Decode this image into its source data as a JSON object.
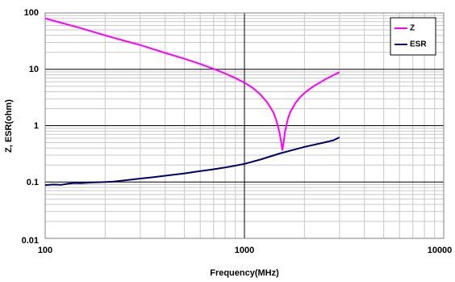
{
  "chart_data": {
    "type": "line",
    "title": "",
    "xlabel": "Frequency(MHz)",
    "ylabel": "Z, ESR(ohm)",
    "xscale": "log",
    "yscale": "log",
    "xlim": [
      100,
      10000
    ],
    "ylim": [
      0.01,
      100
    ],
    "x_ticks": [
      "100",
      "1000",
      "10000"
    ],
    "y_ticks": [
      "0.01",
      "0.1",
      "1",
      "10",
      "100"
    ],
    "grid": true,
    "legend_position": "top-right",
    "series": [
      {
        "name": "Z",
        "color": "#ff00ff",
        "x": [
          100,
          120,
          150,
          200,
          250,
          300,
          400,
          500,
          600,
          700,
          800,
          900,
          1000,
          1100,
          1200,
          1300,
          1400,
          1450,
          1500,
          1530,
          1550,
          1570,
          1600,
          1650,
          1700,
          1800,
          1900,
          2000,
          2200,
          2500,
          2800,
          3000
        ],
        "values": [
          80,
          67,
          54,
          40,
          32,
          27,
          19.5,
          15.4,
          12.4,
          10.2,
          8.4,
          7.0,
          5.8,
          4.7,
          3.6,
          2.6,
          1.7,
          1.2,
          0.75,
          0.5,
          0.37,
          0.48,
          0.8,
          1.3,
          1.75,
          2.5,
          3.2,
          3.8,
          4.9,
          6.4,
          7.9,
          8.9
        ]
      },
      {
        "name": "ESR",
        "color": "#000066",
        "x": [
          100,
          110,
          120,
          130,
          140,
          150,
          170,
          200,
          220,
          250,
          300,
          350,
          400,
          500,
          600,
          700,
          800,
          900,
          1000,
          1200,
          1500,
          1800,
          2000,
          2500,
          2800,
          3000
        ],
        "values": [
          0.088,
          0.09,
          0.089,
          0.093,
          0.096,
          0.095,
          0.098,
          0.1,
          0.102,
          0.107,
          0.115,
          0.122,
          0.129,
          0.142,
          0.156,
          0.168,
          0.181,
          0.195,
          0.21,
          0.25,
          0.32,
          0.38,
          0.42,
          0.5,
          0.55,
          0.62
        ]
      }
    ]
  }
}
